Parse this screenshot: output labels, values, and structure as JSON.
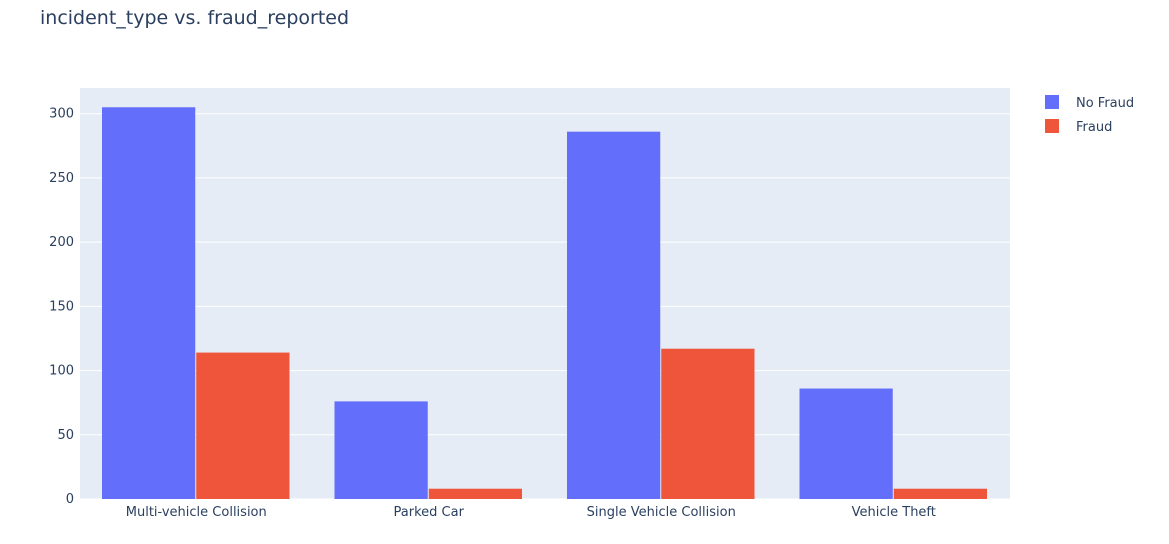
{
  "chart_data": {
    "type": "bar",
    "title": "incident_type vs. fraud_reported",
    "xlabel": "",
    "ylabel": "",
    "categories": [
      "Multi-vehicle Collision",
      "Parked Car",
      "Single Vehicle Collision",
      "Vehicle Theft"
    ],
    "series": [
      {
        "name": "No Fraud",
        "values": [
          305,
          76,
          286,
          86
        ],
        "color": "#636efa"
      },
      {
        "name": "Fraud",
        "values": [
          114,
          8,
          117,
          8
        ],
        "color": "#ef553b"
      }
    ],
    "ylim": [
      0,
      320
    ],
    "yticks": [
      "0",
      "50",
      "100",
      "150",
      "200",
      "250",
      "300"
    ],
    "grid": true,
    "legend_position": "top-right",
    "plot_background": "#e5ecf6"
  }
}
